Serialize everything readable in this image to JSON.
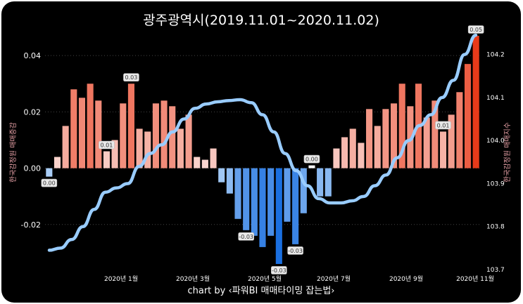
{
  "chart_data": {
    "type": "bar+line",
    "title": "광주광역시(2019.11.01~2020.11.02)",
    "caption": "chart by ‹파워BI 매매타이밍 잡는법›",
    "y_left_label": "한국감정원 매매증감",
    "y_right_label": "한국감정원 매매지수",
    "y_left_ticks": [
      "0.04",
      "0.02",
      "0.00",
      "-0.02"
    ],
    "y_right_ticks": [
      "104.2",
      "104.1",
      "104.0",
      "103.9",
      "103.8",
      "103.7"
    ],
    "x_ticks": [
      "2020년 1월",
      "2020년 3월",
      "2020년 5월",
      "2020년 7월",
      "2020년 9월",
      "2020년 11월"
    ],
    "ylim_left": [
      -0.036,
      0.048
    ],
    "ylim_right": [
      103.7,
      104.25
    ],
    "grid": "horizontal dotted",
    "bar_series": {
      "name": "매매증감",
      "values": [
        -0.003,
        0.004,
        0.015,
        0.028,
        0.025,
        0.03,
        0.024,
        0.006,
        0.01,
        0.023,
        0.03,
        0.014,
        0.013,
        0.023,
        0.024,
        0.022,
        0.014,
        0.019,
        0.004,
        0.003,
        0.007,
        -0.005,
        -0.009,
        -0.018,
        -0.022,
        -0.024,
        -0.028,
        -0.024,
        -0.034,
        -0.019,
        -0.027,
        -0.016,
        0.001,
        -0.01,
        -0.01,
        0.007,
        0.011,
        0.014,
        0.009,
        0.021,
        0.015,
        0.021,
        0.023,
        0.03,
        0.022,
        0.03,
        0.018,
        0.024,
        0.013,
        0.019,
        0.027,
        0.037,
        0.047
      ]
    },
    "line_series": {
      "name": "매매지수",
      "values": [
        103.745,
        103.75,
        103.77,
        103.8,
        103.84,
        103.88,
        103.89,
        103.9,
        103.94,
        103.97,
        103.99,
        104.02,
        104.05,
        104.075,
        104.085,
        104.09,
        104.093,
        104.095,
        104.088,
        104.06,
        104.02,
        103.97,
        103.93,
        103.895,
        103.865,
        103.855,
        103.855,
        103.86,
        103.87,
        103.895,
        103.92,
        103.96,
        104.0,
        104.035,
        104.06,
        104.1,
        104.14,
        104.2,
        104.245
      ]
    },
    "data_labels": [
      "0.00",
      "0.01",
      "0.03",
      "-0.03",
      "-0.03",
      "-0.03",
      "0.00",
      "0.01",
      "0.05"
    ],
    "colors": {
      "positive_dark": "#e83a1a",
      "positive_light": "#fbe0dc",
      "negative_dark": "#1a6fe0",
      "negative_light": "#b7d6f8",
      "line": "#99ccff",
      "background": "#000000"
    }
  }
}
